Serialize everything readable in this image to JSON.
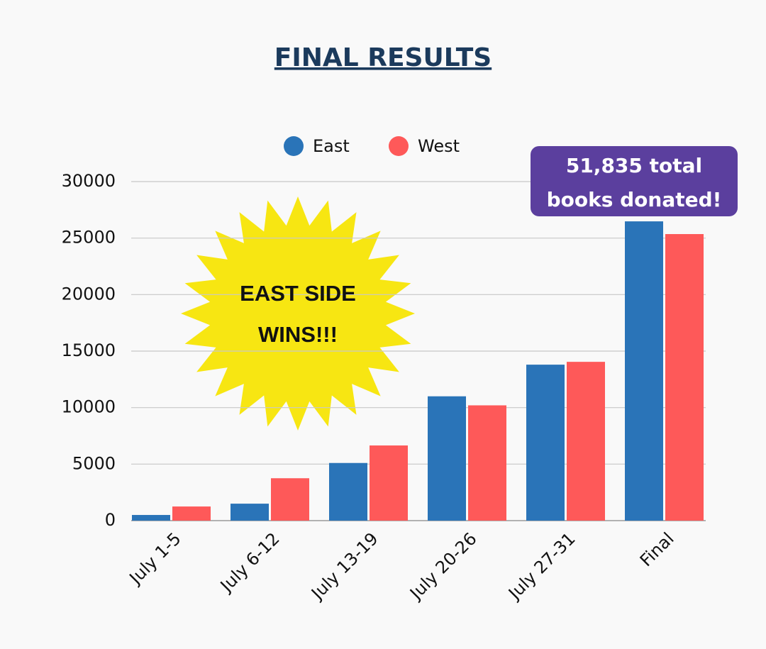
{
  "chart_data": {
    "type": "bar",
    "title": "FINAL RESULTS",
    "categories": [
      "July 1-5",
      "July 6-12",
      "July 13-19",
      "July 20-26",
      "July 27-31",
      "Final"
    ],
    "series": [
      {
        "name": "East",
        "color": "#2a74b8",
        "values": [
          500,
          1500,
          5100,
          11000,
          13800,
          26480
        ]
      },
      {
        "name": "West",
        "color": "#fe5959",
        "values": [
          1250,
          3750,
          6650,
          10200,
          14050,
          25355
        ]
      }
    ],
    "ylim": [
      0,
      30000
    ],
    "yticks": [
      0,
      5000,
      10000,
      15000,
      20000,
      25000,
      30000
    ],
    "grid": true,
    "annotations": [
      "EAST SIDE WINS!!!",
      "51,835 total books donated!"
    ]
  }
}
